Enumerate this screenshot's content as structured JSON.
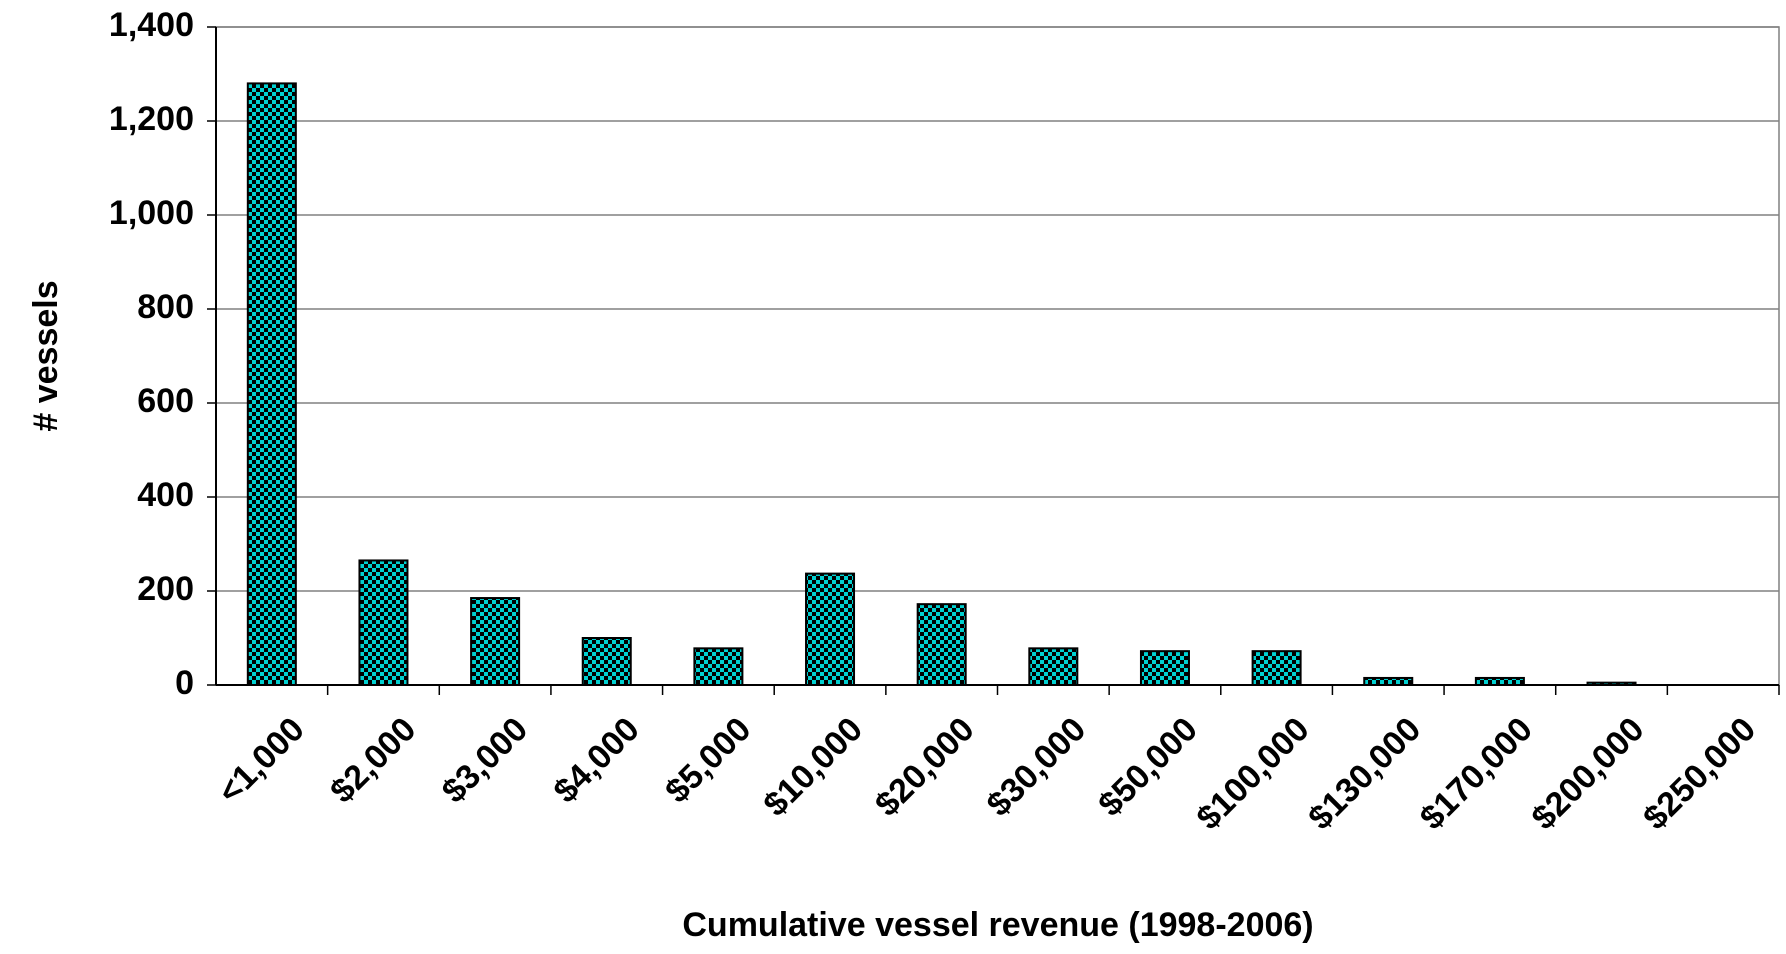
{
  "chart_data": {
    "type": "bar",
    "x_label": "Cumulative vessel revenue (1998-2006)",
    "y_label": "# vessels",
    "categories": [
      "<1,000",
      "$2,000",
      "$3,000",
      "$4,000",
      "$5,000",
      "$10,000",
      "$20,000",
      "$30,000",
      "$50,000",
      "$100,000",
      "$130,000",
      "$170,000",
      "$200,000",
      "$250,000"
    ],
    "values": [
      1280,
      265,
      185,
      100,
      78,
      237,
      172,
      78,
      72,
      72,
      15,
      15,
      5,
      0
    ],
    "color": "#00d0d0",
    "ylim": [
      0,
      1400
    ],
    "yticks": [
      0,
      200,
      400,
      600,
      800,
      {
        "value": 1000,
        "label": "1,000"
      },
      {
        "value": 1200,
        "label": "1,200"
      },
      {
        "value": 1400,
        "label": "1,400"
      }
    ],
    "grid": true
  }
}
